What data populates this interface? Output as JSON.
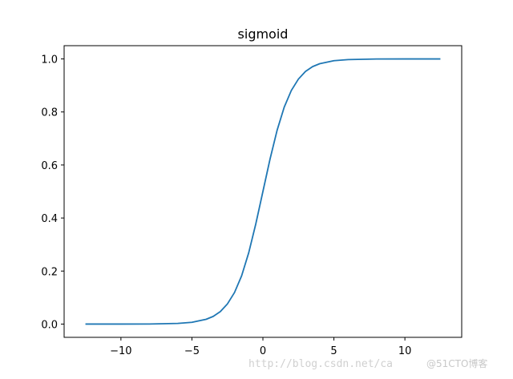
{
  "chart_data": {
    "type": "line",
    "title": "sigmoid",
    "xlabel": "",
    "ylabel": "",
    "xlim": [
      -14,
      14
    ],
    "ylim": [
      -0.05,
      1.05
    ],
    "grid": false,
    "x_ticks": [
      -10,
      -5,
      0,
      5,
      10
    ],
    "x_tick_labels": [
      "−10",
      "−5",
      "0",
      "5",
      "10"
    ],
    "y_ticks": [
      0.0,
      0.2,
      0.4,
      0.6,
      0.8,
      1.0
    ],
    "y_tick_labels": [
      "0.0",
      "0.2",
      "0.4",
      "0.6",
      "0.8",
      "1.0"
    ],
    "series": [
      {
        "color": "#1f77b4",
        "x": [
          -12.5,
          -10,
          -8,
          -6,
          -5,
          -4,
          -3.5,
          -3,
          -2.5,
          -2,
          -1.5,
          -1,
          -0.5,
          0,
          0.5,
          1,
          1.5,
          2,
          2.5,
          3,
          3.5,
          4,
          5,
          6,
          8,
          10,
          12.5
        ],
        "y": [
          0.0,
          0.0,
          0.0003,
          0.0025,
          0.0067,
          0.018,
          0.029,
          0.047,
          0.076,
          0.119,
          0.182,
          0.269,
          0.378,
          0.5,
          0.622,
          0.731,
          0.818,
          0.881,
          0.924,
          0.953,
          0.971,
          0.982,
          0.9933,
          0.9975,
          0.9997,
          1.0,
          1.0
        ]
      }
    ]
  },
  "watermark": {
    "text": "http://blog.csdn.net/ca",
    "brand": "@51CTO博客"
  }
}
